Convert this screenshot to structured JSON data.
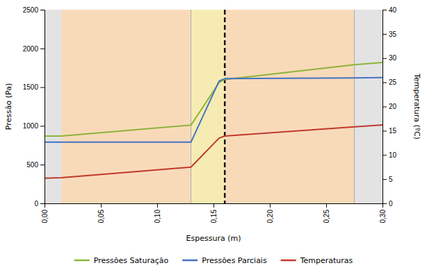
{
  "chart_data": {
    "type": "line",
    "xlabel": "Espessura (m)",
    "ylabel": "Pressão (Pa)",
    "y2label": "Temperatura (ºC)",
    "x": [
      0.0,
      0.015,
      0.13,
      0.155,
      0.16,
      0.275,
      0.3
    ],
    "xlim": [
      0.0,
      0.3
    ],
    "xticks": [
      {
        "value": 0.0,
        "label": "0,00"
      },
      {
        "value": 0.05,
        "label": "0,05"
      },
      {
        "value": 0.1,
        "label": "0,10"
      },
      {
        "value": 0.15,
        "label": "0,15"
      },
      {
        "value": 0.2,
        "label": "0,20"
      },
      {
        "value": 0.25,
        "label": "0,25"
      },
      {
        "value": 0.3,
        "label": "0,30"
      }
    ],
    "ylim": [
      0,
      2500
    ],
    "yticks": [
      0,
      500,
      1000,
      1500,
      2000,
      2500
    ],
    "y2lim": [
      0,
      40
    ],
    "y2ticks": [
      0,
      5,
      10,
      15,
      20,
      25,
      30,
      35,
      40
    ],
    "grid": false,
    "legend": "bottom",
    "zones": [
      {
        "x0": 0.0,
        "x1": 0.015,
        "color": "#d0d0d0"
      },
      {
        "x0": 0.015,
        "x1": 0.13,
        "color": "#f4c18a"
      },
      {
        "x0": 0.13,
        "x1": 0.16,
        "color": "#f0e080"
      },
      {
        "x0": 0.16,
        "x1": 0.275,
        "color": "#f4c18a"
      },
      {
        "x0": 0.275,
        "x1": 0.3,
        "color": "#d0d0d0"
      }
    ],
    "vlines": [
      {
        "x": 0.13,
        "color": "#aaaaaa",
        "line_style": "solid"
      },
      {
        "x": 0.16,
        "color": "#111111",
        "line_style": "dashed"
      },
      {
        "x": 0.275,
        "color": "#aaaaaa",
        "line_style": "solid"
      }
    ],
    "series": [
      {
        "name": "Pressões Saturação",
        "color": "#8db43a",
        "values": [
          870,
          870,
          1010,
          1560,
          1600,
          1790,
          1820
        ]
      },
      {
        "name": "Pressões Parciais",
        "color": "#4472c4",
        "values": [
          790,
          790,
          790,
          1580,
          1610,
          1620,
          1625
        ]
      },
      {
        "name": "Temperaturas",
        "color": "#c0392b",
        "axis": "y2",
        "values": [
          5.2,
          5.3,
          7.5,
          13.5,
          13.9,
          15.8,
          16.2
        ]
      }
    ]
  }
}
